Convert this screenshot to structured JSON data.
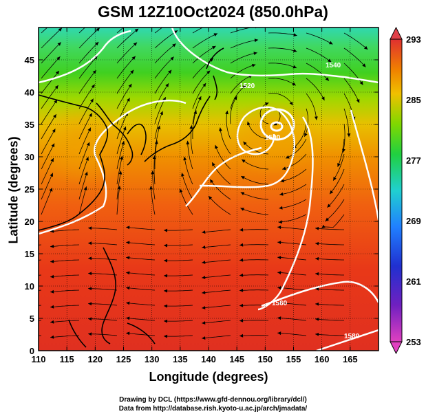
{
  "title": "GSM 12Z10Oct2024 (850.0hPa)",
  "xlabel": "Longitude (degrees)",
  "ylabel": "Latitude  (degrees)",
  "credits": {
    "line1": "Drawing by DCL (https://www.gfd-dennou.org/library/dcl/)",
    "line2": "Data from http://database.rish.kyoto-u.ac.jp/arch/jmadata/"
  },
  "chart_data": {
    "type": "heatmap",
    "x_range": [
      110,
      170
    ],
    "y_range": [
      0,
      50
    ],
    "x_ticks": [
      "110",
      "115",
      "120",
      "125",
      "130",
      "135",
      "140",
      "145",
      "150",
      "155",
      "160",
      "165"
    ],
    "y_ticks": [
      "0",
      "5",
      "10",
      "15",
      "20",
      "25",
      "30",
      "35",
      "40",
      "45"
    ],
    "colorbar": {
      "range": [
        253,
        293
      ],
      "tick_labels": [
        "253",
        "261",
        "269",
        "277",
        "285",
        "293"
      ],
      "colors": [
        "#e040c0",
        "#3020c0",
        "#2060ff",
        "#20c0e0",
        "#20e080",
        "#30d020",
        "#a0e000",
        "#f0c000",
        "#f08000",
        "#e03020"
      ]
    },
    "contour_labels": [
      "1500",
      "1520",
      "1540",
      "1560",
      "1580"
    ],
    "low_center": {
      "lon": 151,
      "lat": 37
    },
    "grid": true,
    "overlays": [
      "coastlines",
      "streamlines"
    ]
  }
}
